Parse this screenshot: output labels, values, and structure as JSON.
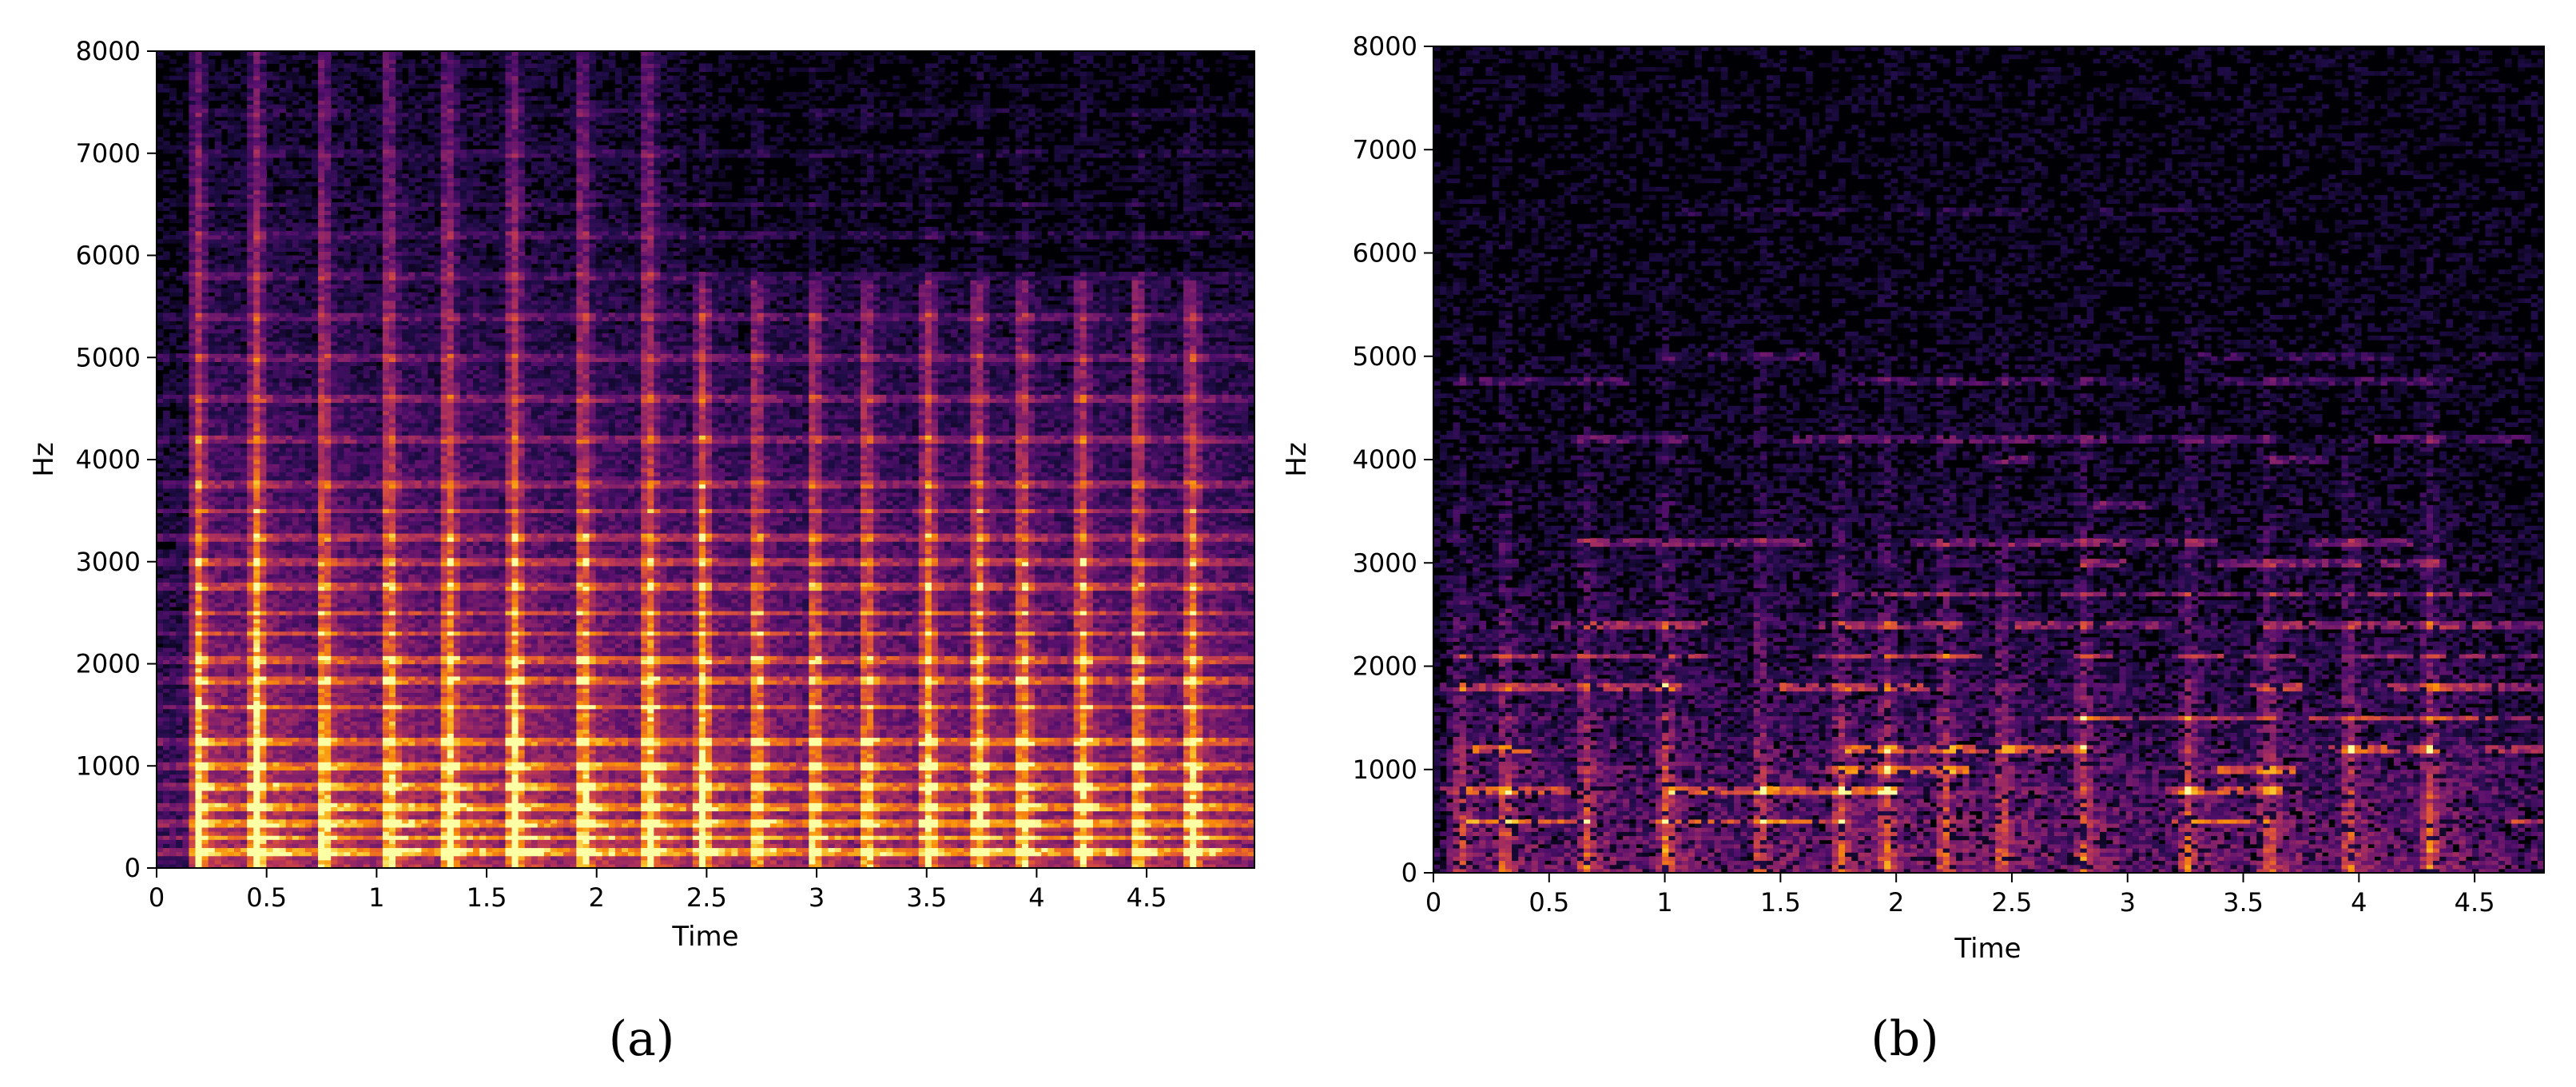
{
  "chart_data": [
    {
      "type": "heatmap",
      "panel_label": "(a)",
      "xlabel": "Time",
      "ylabel": "Hz",
      "xlim": [
        0,
        4.99
      ],
      "ylim": [
        0,
        8000
      ],
      "xticks": [
        0,
        0.5,
        1,
        1.5,
        2,
        2.5,
        3,
        3.5,
        4,
        4.5
      ],
      "xtick_labels": [
        "0",
        "0.5",
        "1",
        "1.5",
        "2",
        "2.5",
        "3",
        "3.5",
        "4",
        "4.5"
      ],
      "yticks": [
        0,
        1000,
        2000,
        3000,
        4000,
        5000,
        6000,
        7000,
        8000
      ],
      "ytick_labels": [
        "0",
        "1000",
        "2000",
        "3000",
        "4000",
        "5000",
        "6000",
        "7000",
        "8000"
      ],
      "colormap": "inferno",
      "onsets": [
        0.18,
        0.45,
        0.75,
        1.05,
        1.32,
        1.62,
        1.93,
        2.23,
        2.48,
        2.72,
        2.98,
        3.22,
        3.5,
        3.73,
        3.93,
        4.2,
        4.45,
        4.7
      ],
      "harmonic_bands_hz": [
        150,
        300,
        450,
        600,
        800,
        1000,
        1250,
        1580,
        1850,
        2050,
        2300,
        2500,
        2750,
        3000,
        3250,
        3500,
        3750,
        4200,
        4600,
        5000,
        5400,
        5800,
        6200,
        6500,
        7000,
        7400
      ]
    },
    {
      "type": "heatmap",
      "panel_label": "(b)",
      "xlabel": "Time",
      "ylabel": "Hz",
      "xlim": [
        0,
        4.8
      ],
      "ylim": [
        0,
        8000
      ],
      "xticks": [
        0,
        0.5,
        1,
        1.5,
        2,
        2.5,
        3,
        3.5,
        4,
        4.5
      ],
      "xtick_labels": [
        "0",
        "0.5",
        "1",
        "1.5",
        "2",
        "2.5",
        "3",
        "3.5",
        "4",
        "4.5"
      ],
      "yticks": [
        0,
        1000,
        2000,
        3000,
        4000,
        5000,
        6000,
        7000,
        8000
      ],
      "ytick_labels": [
        "0",
        "1000",
        "2000",
        "3000",
        "4000",
        "5000",
        "6000",
        "7000",
        "8000"
      ],
      "colormap": "inferno",
      "onsets": [
        0.1,
        0.3,
        0.65,
        1.0,
        1.4,
        1.75,
        1.95,
        2.2,
        2.45,
        2.8,
        3.25,
        3.6,
        3.95,
        4.3
      ],
      "harmonic_bands_hz": [
        500,
        800,
        1000,
        1200,
        1500,
        1800,
        2100,
        2400,
        2700,
        3000,
        3200,
        3550,
        4000,
        4200,
        4750,
        5000,
        6400
      ]
    }
  ]
}
